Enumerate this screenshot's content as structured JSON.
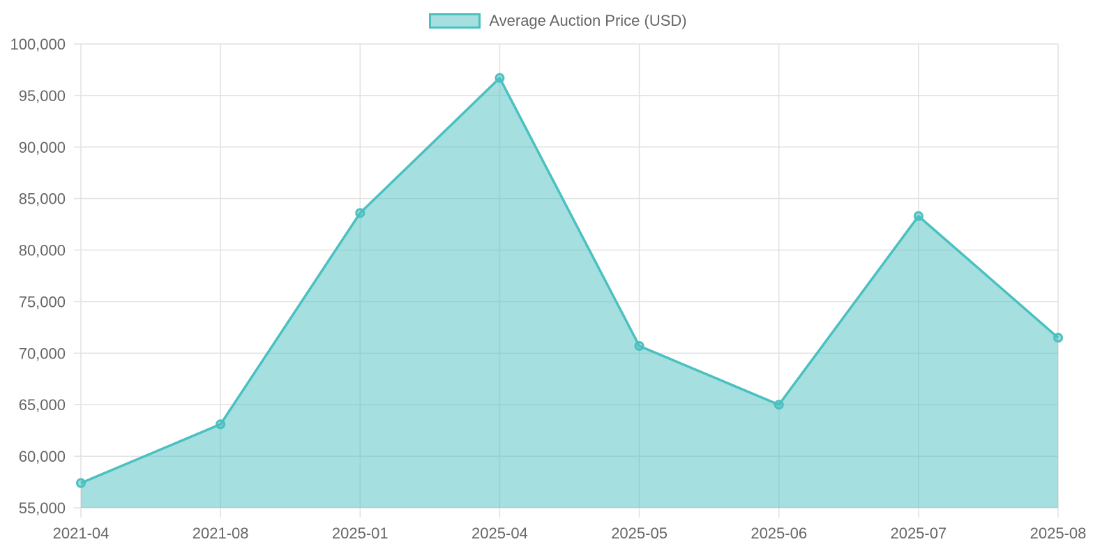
{
  "chart_data": {
    "type": "area",
    "title": "",
    "xlabel": "",
    "ylabel": "",
    "legend": {
      "position": "top",
      "entries": [
        "Average Auction Price (USD)"
      ]
    },
    "categories": [
      "2021-04",
      "2021-08",
      "2025-01",
      "2025-04",
      "2025-05",
      "2025-06",
      "2025-07",
      "2025-08"
    ],
    "series": [
      {
        "name": "Average Auction Price (USD)",
        "values": [
          57400,
          63100,
          83600,
          96700,
          70700,
          65000,
          83300,
          71500
        ],
        "line_color": "#4bc0c0",
        "fill_color": "rgba(75,192,192,0.5)"
      }
    ],
    "ylim": [
      55000,
      100000
    ],
    "yticks": [
      55000,
      60000,
      65000,
      70000,
      75000,
      80000,
      85000,
      90000,
      95000,
      100000
    ],
    "ytick_labels": [
      "55,000",
      "60,000",
      "65,000",
      "70,000",
      "75,000",
      "80,000",
      "85,000",
      "90,000",
      "95,000",
      "100,000"
    ],
    "grid": true
  },
  "legend": {
    "label": "Average Auction Price (USD)"
  },
  "colors": {
    "line": "#4bc0c0",
    "fill": "rgba(75,192,192,0.5)",
    "grid": "#e1e1e1",
    "text": "#666666"
  }
}
